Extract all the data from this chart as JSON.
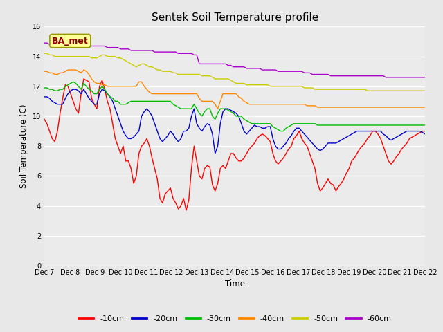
{
  "title": "Sentek Soil Temperature profile",
  "xlabel": "Time",
  "ylabel": "Soil Temperature (C)",
  "ylim": [
    0,
    16
  ],
  "yticks": [
    0,
    2,
    4,
    6,
    8,
    10,
    12,
    14,
    16
  ],
  "x_labels": [
    "Dec 7",
    "Dec 8",
    "Dec 9",
    "Dec 10",
    "Dec 11",
    "Dec 12",
    "Dec 13",
    "Dec 14",
    "Dec 15",
    "Dec 16",
    "Dec 17",
    "Dec 18",
    "Dec 19",
    "Dec 20",
    "Dec 21",
    "Dec 22"
  ],
  "ba_met_label": "BA_met",
  "colors": {
    "-10cm": "#ff0000",
    "-20cm": "#0000cc",
    "-30cm": "#00bb00",
    "-40cm": "#ff8800",
    "-50cm": "#cccc00",
    "-60cm": "#aa00cc"
  },
  "fig_bg": "#e8e8e8",
  "plot_bg": "#ebebeb",
  "grid_color": "#ffffff",
  "data": {
    "-10cm": [
      9.8,
      9.5,
      9.0,
      8.5,
      8.3,
      9.0,
      10.2,
      11.2,
      12.1,
      12.0,
      11.5,
      11.0,
      10.5,
      10.2,
      11.5,
      12.5,
      12.4,
      12.3,
      11.2,
      10.8,
      10.5,
      12.0,
      12.4,
      11.8,
      11.0,
      10.5,
      9.5,
      8.5,
      8.0,
      7.5,
      8.0,
      7.0,
      7.0,
      6.5,
      5.5,
      6.0,
      7.5,
      8.0,
      8.2,
      8.5,
      8.0,
      7.2,
      6.5,
      5.8,
      4.5,
      4.2,
      4.8,
      5.0,
      5.2,
      4.5,
      4.2,
      3.8,
      4.0,
      4.5,
      3.7,
      4.4,
      6.5,
      8.0,
      7.0,
      6.0,
      5.8,
      6.5,
      6.7,
      6.6,
      5.4,
      5.0,
      5.5,
      6.5,
      6.7,
      6.5,
      7.0,
      7.5,
      7.5,
      7.2,
      7.0,
      7.0,
      7.2,
      7.5,
      7.8,
      8.0,
      8.2,
      8.5,
      8.7,
      8.8,
      8.7,
      8.5,
      8.3,
      7.5,
      7.0,
      6.8,
      7.0,
      7.2,
      7.5,
      7.8,
      8.0,
      8.5,
      8.7,
      9.0,
      8.5,
      8.2,
      8.0,
      7.5,
      7.0,
      6.5,
      5.5,
      5.0,
      5.2,
      5.5,
      5.8,
      5.5,
      5.4,
      5.0,
      5.3,
      5.5,
      5.8,
      6.2,
      6.5,
      7.0,
      7.2,
      7.5,
      7.8,
      8.0,
      8.2,
      8.5,
      8.7,
      9.0,
      9.0,
      8.8,
      8.5,
      8.0,
      7.5,
      7.0,
      6.8,
      7.0,
      7.3,
      7.5,
      7.8,
      8.0,
      8.2,
      8.5,
      8.6,
      8.7,
      8.8,
      8.9,
      9.0,
      9.0
    ],
    "-20cm": [
      11.3,
      11.3,
      11.2,
      11.0,
      10.9,
      10.8,
      10.8,
      10.8,
      11.2,
      11.5,
      11.7,
      11.8,
      11.8,
      11.7,
      11.5,
      11.8,
      11.5,
      11.2,
      11.0,
      10.8,
      10.8,
      11.5,
      11.8,
      11.7,
      11.5,
      11.3,
      11.0,
      10.5,
      10.0,
      9.5,
      9.0,
      8.7,
      8.5,
      8.5,
      8.6,
      8.8,
      9.0,
      10.0,
      10.3,
      10.5,
      10.3,
      10.0,
      9.5,
      9.0,
      8.5,
      8.3,
      8.5,
      8.7,
      9.0,
      8.8,
      8.5,
      8.3,
      8.5,
      9.0,
      9.0,
      9.2,
      10.0,
      10.5,
      9.5,
      9.2,
      9.0,
      9.3,
      9.5,
      9.4,
      8.8,
      7.5,
      8.0,
      9.5,
      10.3,
      10.5,
      10.5,
      10.4,
      10.3,
      10.2,
      10.0,
      9.5,
      9.0,
      8.8,
      9.0,
      9.2,
      9.4,
      9.3,
      9.3,
      9.2,
      9.2,
      9.3,
      9.3,
      8.5,
      8.0,
      7.8,
      7.8,
      8.0,
      8.2,
      8.5,
      8.7,
      9.0,
      9.2,
      9.2,
      9.0,
      8.8,
      8.6,
      8.4,
      8.2,
      8.0,
      7.8,
      7.7,
      7.8,
      8.0,
      8.2,
      8.2,
      8.2,
      8.2,
      8.3,
      8.4,
      8.5,
      8.6,
      8.7,
      8.8,
      8.9,
      9.0,
      9.0,
      9.0,
      9.0,
      9.0,
      9.0,
      9.0,
      9.0,
      9.0,
      9.0,
      8.8,
      8.7,
      8.5,
      8.4,
      8.5,
      8.6,
      8.7,
      8.8,
      8.9,
      9.0,
      9.0,
      9.0,
      9.0,
      9.0,
      9.0,
      8.9,
      8.8
    ],
    "-30cm": [
      11.9,
      11.9,
      11.8,
      11.8,
      11.7,
      11.7,
      11.8,
      11.8,
      12.0,
      12.1,
      12.2,
      12.3,
      12.2,
      12.0,
      11.8,
      12.2,
      12.0,
      11.8,
      11.7,
      11.5,
      11.5,
      11.8,
      12.0,
      11.8,
      11.5,
      11.3,
      11.2,
      11.0,
      11.0,
      10.8,
      10.8,
      10.8,
      10.9,
      11.0,
      11.0,
      11.0,
      11.0,
      11.0,
      11.0,
      11.0,
      11.0,
      11.0,
      11.0,
      11.0,
      11.0,
      11.0,
      11.0,
      11.0,
      11.0,
      10.8,
      10.7,
      10.6,
      10.5,
      10.5,
      10.5,
      10.5,
      10.5,
      10.8,
      10.5,
      10.2,
      10.0,
      10.3,
      10.5,
      10.5,
      10.0,
      9.8,
      10.2,
      10.5,
      10.5,
      10.5,
      10.4,
      10.3,
      10.2,
      10.0,
      10.0,
      10.0,
      9.8,
      9.7,
      9.6,
      9.5,
      9.5,
      9.5,
      9.5,
      9.5,
      9.5,
      9.5,
      9.5,
      9.3,
      9.2,
      9.1,
      9.0,
      9.0,
      9.2,
      9.3,
      9.4,
      9.5,
      9.5,
      9.5,
      9.5,
      9.5,
      9.5,
      9.5,
      9.5,
      9.5,
      9.4,
      9.4,
      9.4,
      9.4,
      9.4,
      9.4,
      9.4,
      9.4,
      9.4,
      9.4,
      9.4,
      9.4,
      9.4,
      9.4,
      9.4,
      9.4,
      9.4,
      9.4,
      9.4,
      9.4,
      9.4,
      9.4,
      9.4,
      9.4,
      9.4,
      9.4,
      9.4,
      9.4,
      9.4,
      9.4,
      9.4,
      9.4,
      9.4,
      9.4,
      9.4,
      9.4,
      9.4,
      9.4,
      9.4,
      9.4,
      9.4,
      9.4
    ],
    "-40cm": [
      13.0,
      13.0,
      12.9,
      12.9,
      12.8,
      12.8,
      12.9,
      12.9,
      13.0,
      13.1,
      13.1,
      13.1,
      13.1,
      13.0,
      12.9,
      13.1,
      13.0,
      12.8,
      12.5,
      12.3,
      12.2,
      12.2,
      12.1,
      12.1,
      12.0,
      12.0,
      12.0,
      12.0,
      12.0,
      12.0,
      12.0,
      12.0,
      12.0,
      12.0,
      12.0,
      12.0,
      12.3,
      12.3,
      12.0,
      11.8,
      11.6,
      11.5,
      11.5,
      11.5,
      11.5,
      11.5,
      11.5,
      11.5,
      11.5,
      11.5,
      11.5,
      11.5,
      11.5,
      11.5,
      11.5,
      11.5,
      11.5,
      11.5,
      11.5,
      11.2,
      11.0,
      11.0,
      11.0,
      11.0,
      11.0,
      10.8,
      10.5,
      11.0,
      11.5,
      11.5,
      11.5,
      11.5,
      11.5,
      11.5,
      11.3,
      11.2,
      11.0,
      10.9,
      10.8,
      10.8,
      10.8,
      10.8,
      10.8,
      10.8,
      10.8,
      10.8,
      10.8,
      10.8,
      10.8,
      10.8,
      10.8,
      10.8,
      10.8,
      10.8,
      10.8,
      10.8,
      10.8,
      10.8,
      10.8,
      10.8,
      10.7,
      10.7,
      10.7,
      10.7,
      10.6,
      10.6,
      10.6,
      10.6,
      10.6,
      10.6,
      10.6,
      10.6,
      10.6,
      10.6,
      10.6,
      10.6,
      10.6,
      10.6,
      10.6,
      10.6,
      10.6,
      10.6,
      10.6,
      10.6,
      10.6,
      10.6,
      10.6,
      10.6,
      10.6,
      10.6,
      10.6,
      10.6,
      10.6,
      10.6,
      10.6,
      10.6,
      10.6,
      10.6,
      10.6,
      10.6,
      10.6,
      10.6,
      10.6,
      10.6,
      10.6,
      10.6
    ],
    "-50cm": [
      14.2,
      14.2,
      14.1,
      14.1,
      14.0,
      14.0,
      14.0,
      14.0,
      14.0,
      14.0,
      14.0,
      14.0,
      14.0,
      14.0,
      14.0,
      14.0,
      14.0,
      14.0,
      13.9,
      13.9,
      13.9,
      14.0,
      14.1,
      14.1,
      14.0,
      14.0,
      14.0,
      14.0,
      13.9,
      13.9,
      13.8,
      13.7,
      13.6,
      13.5,
      13.4,
      13.3,
      13.4,
      13.5,
      13.5,
      13.4,
      13.3,
      13.3,
      13.2,
      13.1,
      13.1,
      13.0,
      13.0,
      13.0,
      13.0,
      12.9,
      12.9,
      12.8,
      12.8,
      12.8,
      12.8,
      12.8,
      12.8,
      12.8,
      12.8,
      12.8,
      12.7,
      12.7,
      12.7,
      12.7,
      12.6,
      12.5,
      12.5,
      12.5,
      12.5,
      12.5,
      12.5,
      12.4,
      12.3,
      12.2,
      12.2,
      12.2,
      12.2,
      12.1,
      12.1,
      12.1,
      12.1,
      12.1,
      12.1,
      12.1,
      12.1,
      12.1,
      12.0,
      12.0,
      12.0,
      12.0,
      12.0,
      12.0,
      12.0,
      12.0,
      12.0,
      12.0,
      12.0,
      12.0,
      12.0,
      11.9,
      11.9,
      11.9,
      11.9,
      11.8,
      11.8,
      11.8,
      11.8,
      11.8,
      11.8,
      11.8,
      11.8,
      11.8,
      11.8,
      11.8,
      11.8,
      11.8,
      11.8,
      11.8,
      11.8,
      11.8,
      11.8,
      11.8,
      11.8,
      11.7,
      11.7,
      11.7,
      11.7,
      11.7,
      11.7,
      11.7,
      11.7,
      11.7,
      11.7,
      11.7,
      11.7,
      11.7,
      11.7,
      11.7,
      11.7,
      11.7,
      11.7,
      11.7,
      11.7,
      11.7,
      11.7,
      11.7
    ],
    "-60cm": [
      14.9,
      14.9,
      14.8,
      14.8,
      14.8,
      14.8,
      14.8,
      14.8,
      14.8,
      14.8,
      14.8,
      14.8,
      14.7,
      14.7,
      14.7,
      14.7,
      14.7,
      14.7,
      14.7,
      14.7,
      14.7,
      14.7,
      14.7,
      14.7,
      14.6,
      14.6,
      14.6,
      14.6,
      14.6,
      14.5,
      14.5,
      14.5,
      14.5,
      14.4,
      14.4,
      14.4,
      14.4,
      14.4,
      14.4,
      14.4,
      14.4,
      14.4,
      14.3,
      14.3,
      14.3,
      14.3,
      14.3,
      14.3,
      14.3,
      14.3,
      14.3,
      14.2,
      14.2,
      14.2,
      14.2,
      14.2,
      14.2,
      14.1,
      14.1,
      13.5,
      13.5,
      13.5,
      13.5,
      13.5,
      13.5,
      13.5,
      13.5,
      13.5,
      13.5,
      13.5,
      13.4,
      13.4,
      13.3,
      13.3,
      13.3,
      13.3,
      13.3,
      13.2,
      13.2,
      13.2,
      13.2,
      13.2,
      13.2,
      13.1,
      13.1,
      13.1,
      13.1,
      13.1,
      13.1,
      13.0,
      13.0,
      13.0,
      13.0,
      13.0,
      13.0,
      13.0,
      13.0,
      13.0,
      13.0,
      12.9,
      12.9,
      12.9,
      12.8,
      12.8,
      12.8,
      12.8,
      12.8,
      12.8,
      12.8,
      12.7,
      12.7,
      12.7,
      12.7,
      12.7,
      12.7,
      12.7,
      12.7,
      12.7,
      12.7,
      12.7,
      12.7,
      12.7,
      12.7,
      12.7,
      12.7,
      12.7,
      12.7,
      12.7,
      12.7,
      12.7,
      12.6,
      12.6,
      12.6,
      12.6,
      12.6,
      12.6,
      12.6,
      12.6,
      12.6,
      12.6,
      12.6,
      12.6,
      12.6,
      12.6,
      12.6,
      12.6
    ]
  }
}
